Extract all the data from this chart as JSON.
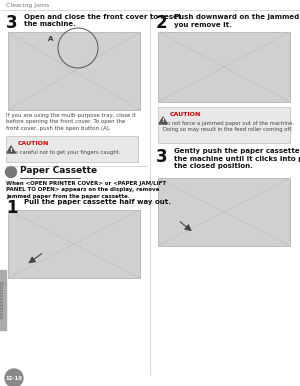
{
  "page_bg": "#ffffff",
  "header_text": "Clearing Jams",
  "header_color": "#777777",
  "divider_color": "#bbbbbb",
  "page_number": "12-10",
  "page_num_bg": "#888888",
  "page_num_color": "#ffffff",
  "sidebar_color": "#aaaaaa",
  "sidebar_text_color": "#666666",
  "text_color": "#444444",
  "bold_color": "#111111",
  "step_num_color": "#111111",
  "caution_bg": "#e8e8e8",
  "caution_border": "#bbbbbb",
  "caution_title_color": "#cc0000",
  "image_bg": "#d0d0d0",
  "image_border": "#aaaaaa",
  "image_line": "#bbbbbb",
  "section_dot_color": "#777777",
  "left": {
    "step3_title": "Open and close the front cover to reset\nthe machine.",
    "step3_body": "If you are using the multi-purpose tray, close it\nbefore opening the front cover. To open the\nfront cover, push the open button (A).",
    "caution1_body": "Be careful not to get your fingers caught.",
    "section_title": "Paper Cassette",
    "section_body": "When <OPEN PRINTER COVER> or <PAPER JAM/LIFT\nPANEL TO OPEN> appears on the display, remove\njammed paper from the paper cassette.",
    "step1_title": "Pull the paper cassette half way out."
  },
  "right": {
    "step2_title": "Push downward on the jammed paper as\nyou remove it.",
    "caution2_body": "Do not force a jammed paper out of the machine.\nDoing so may result in the feed roller coming off.",
    "step3_title": "Gently push the paper cassette back into\nthe machine until it clicks into place in\nthe closed position."
  }
}
